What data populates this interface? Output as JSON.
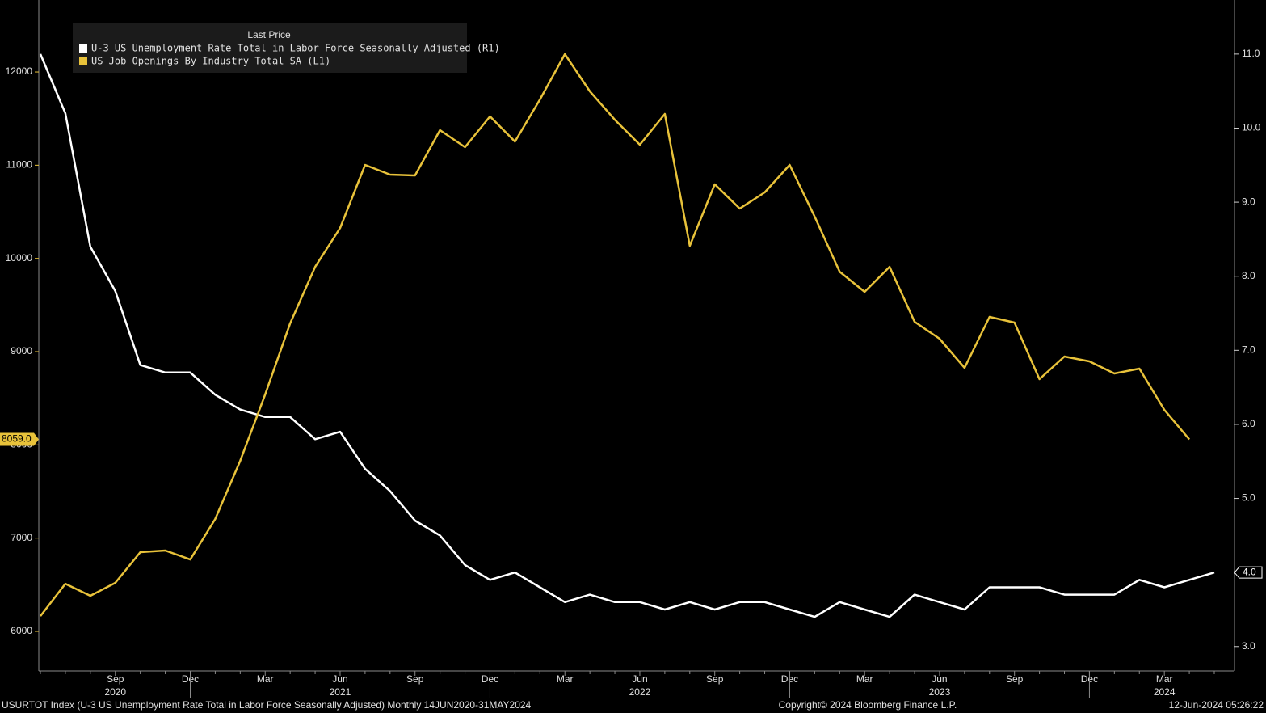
{
  "chart_data": {
    "type": "line",
    "legend_title": "Last Price",
    "categories": [
      null,
      null,
      null,
      "Sep",
      null,
      null,
      "Dec",
      null,
      null,
      "Mar",
      null,
      null,
      "Jun",
      null,
      null,
      "Sep",
      null,
      null,
      "Dec",
      null,
      null,
      "Mar",
      null,
      null,
      "Jun",
      null,
      null,
      "Sep",
      null,
      null,
      "Dec",
      null,
      null,
      "Mar",
      null,
      null,
      "Jun",
      null,
      null,
      "Sep",
      null,
      null,
      "Dec",
      null,
      null,
      "Mar",
      null,
      null
    ],
    "year_labels": [
      null,
      null,
      null,
      "2020",
      null,
      null,
      null,
      null,
      null,
      null,
      null,
      null,
      "2021",
      null,
      null,
      null,
      null,
      null,
      null,
      null,
      null,
      null,
      null,
      null,
      "2022",
      null,
      null,
      null,
      null,
      null,
      null,
      null,
      null,
      null,
      null,
      null,
      "2023",
      null,
      null,
      null,
      null,
      null,
      null,
      null,
      null,
      "2024",
      null,
      null
    ],
    "series": [
      {
        "name": "U-3 US Unemployment Rate Total in Labor Force Seasonally Adjusted  (R1)",
        "color": "#ffffff",
        "axis": "y2",
        "last_label": "4.0",
        "values": [
          11.0,
          10.2,
          8.4,
          7.8,
          6.8,
          6.7,
          6.7,
          6.4,
          6.2,
          6.1,
          6.1,
          5.8,
          5.9,
          5.4,
          5.1,
          4.7,
          4.5,
          4.1,
          3.9,
          4.0,
          3.8,
          3.6,
          3.7,
          3.6,
          3.6,
          3.5,
          3.6,
          3.5,
          3.6,
          3.6,
          3.5,
          3.4,
          3.6,
          3.5,
          3.4,
          3.7,
          3.6,
          3.5,
          3.8,
          3.8,
          3.8,
          3.7,
          3.7,
          3.7,
          3.9,
          3.8,
          3.9,
          4.0
        ]
      },
      {
        "name": "US Job Openings By Industry Total SA  (L1)",
        "color": "#e8c23a",
        "axis": "y",
        "last_label": "8059.0",
        "values": [
          6164,
          6511,
          6381,
          6520,
          6850,
          6867,
          6771,
          7205,
          7829,
          8540,
          9303,
          9910,
          10327,
          11003,
          10899,
          10890,
          11376,
          11194,
          11523,
          11254,
          11705,
          12191,
          11792,
          11488,
          11220,
          11549,
          10136,
          10795,
          10535,
          10708,
          11003,
          10448,
          9858,
          9642,
          9910,
          9321,
          9139,
          8827,
          9373,
          9312,
          8705,
          8948,
          8896,
          8766,
          8818,
          8376,
          8059,
          null
        ]
      }
    ],
    "ylim": [
      5575,
      12772
    ],
    "yticks": [
      6000,
      7000,
      8000,
      9000,
      10000,
      11000,
      12000
    ],
    "y2lim": [
      2.67,
      11.73
    ],
    "y2ticks": [
      {
        "value": 3,
        "label": "3.0"
      },
      {
        "value": 4,
        "label": "4.0"
      },
      {
        "value": 5,
        "label": "5.0"
      },
      {
        "value": 6,
        "label": "6.0"
      },
      {
        "value": 7,
        "label": "7.0"
      },
      {
        "value": 8,
        "label": "8.0"
      },
      {
        "value": 9,
        "label": "9.0"
      },
      {
        "value": 10,
        "label": "10.0"
      },
      {
        "value": 11,
        "label": "11.0"
      }
    ],
    "footer_left": "USURTOT Index (U-3 US Unemployment Rate Total in Labor Force Seasonally Adjusted)  Monthly 14JUN2020-31MAY2024",
    "footer_center": "Copyright© 2024 Bloomberg Finance L.P.",
    "footer_right": "12-Jun-2024 05:26:22"
  }
}
